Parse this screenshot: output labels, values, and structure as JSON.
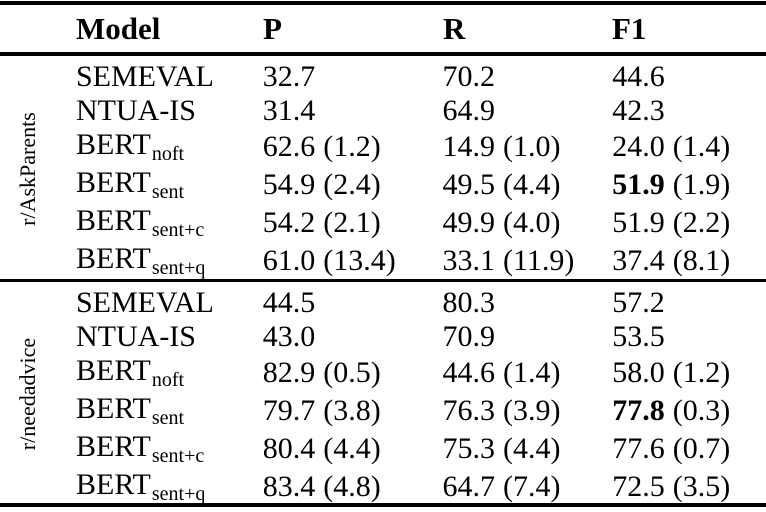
{
  "colors": {
    "text": "#000000",
    "background": "#ffffff",
    "rule": "#000000"
  },
  "table": {
    "headers": {
      "model": "Model",
      "p": "P",
      "r": "R",
      "f1": "F1"
    },
    "groups": [
      {
        "label": "r/AskParents",
        "rows": [
          {
            "model": {
              "base": "SEMEVAL",
              "sub": ""
            },
            "p": {
              "v": "32.7",
              "s": ""
            },
            "r": {
              "v": "70.2",
              "s": ""
            },
            "f1": {
              "v": "44.6",
              "s": ""
            }
          },
          {
            "model": {
              "base": "NTUA-IS",
              "sub": ""
            },
            "p": {
              "v": "31.4",
              "s": ""
            },
            "r": {
              "v": "64.9",
              "s": ""
            },
            "f1": {
              "v": "42.3",
              "s": ""
            }
          },
          {
            "model": {
              "base": "BERT",
              "sub": "noft"
            },
            "p": {
              "v": "62.6",
              "s": "(1.2)"
            },
            "r": {
              "v": "14.9",
              "s": "(1.0)"
            },
            "f1": {
              "v": "24.0",
              "s": "(1.4)"
            }
          },
          {
            "model": {
              "base": "BERT",
              "sub": "sent"
            },
            "p": {
              "v": "54.9",
              "s": "(2.4)"
            },
            "r": {
              "v": "49.5",
              "s": "(4.4)"
            },
            "f1": {
              "v": "51.9",
              "s": "(1.9)",
              "bold": true
            }
          },
          {
            "model": {
              "base": "BERT",
              "sub": "sent+c"
            },
            "p": {
              "v": "54.2",
              "s": "(2.1)"
            },
            "r": {
              "v": "49.9",
              "s": "(4.0)"
            },
            "f1": {
              "v": "51.9",
              "s": "(2.2)"
            }
          },
          {
            "model": {
              "base": "BERT",
              "sub": "sent+q"
            },
            "p": {
              "v": "61.0",
              "s": "(13.4)"
            },
            "r": {
              "v": "33.1",
              "s": "(11.9)"
            },
            "f1": {
              "v": "37.4",
              "s": "(8.1)"
            }
          }
        ]
      },
      {
        "label": "r/needadvice",
        "rows": [
          {
            "model": {
              "base": "SEMEVAL",
              "sub": ""
            },
            "p": {
              "v": "44.5",
              "s": ""
            },
            "r": {
              "v": "80.3",
              "s": ""
            },
            "f1": {
              "v": "57.2",
              "s": ""
            }
          },
          {
            "model": {
              "base": "NTUA-IS",
              "sub": ""
            },
            "p": {
              "v": "43.0",
              "s": ""
            },
            "r": {
              "v": "70.9",
              "s": ""
            },
            "f1": {
              "v": "53.5",
              "s": ""
            }
          },
          {
            "model": {
              "base": "BERT",
              "sub": "noft"
            },
            "p": {
              "v": "82.9",
              "s": "(0.5)"
            },
            "r": {
              "v": "44.6",
              "s": "(1.4)"
            },
            "f1": {
              "v": "58.0",
              "s": "(1.2)"
            }
          },
          {
            "model": {
              "base": "BERT",
              "sub": "sent"
            },
            "p": {
              "v": "79.7",
              "s": "(3.8)"
            },
            "r": {
              "v": "76.3",
              "s": "(3.9)"
            },
            "f1": {
              "v": "77.8",
              "s": "(0.3)",
              "bold": true
            }
          },
          {
            "model": {
              "base": "BERT",
              "sub": "sent+c"
            },
            "p": {
              "v": "80.4",
              "s": "(4.4)"
            },
            "r": {
              "v": "75.3",
              "s": "(4.4)"
            },
            "f1": {
              "v": "77.6",
              "s": "(0.7)"
            }
          },
          {
            "model": {
              "base": "BERT",
              "sub": "sent+q"
            },
            "p": {
              "v": "83.4",
              "s": "(4.8)"
            },
            "r": {
              "v": "64.7",
              "s": "(7.4)"
            },
            "f1": {
              "v": "72.5",
              "s": "(3.5)"
            }
          }
        ]
      }
    ]
  }
}
